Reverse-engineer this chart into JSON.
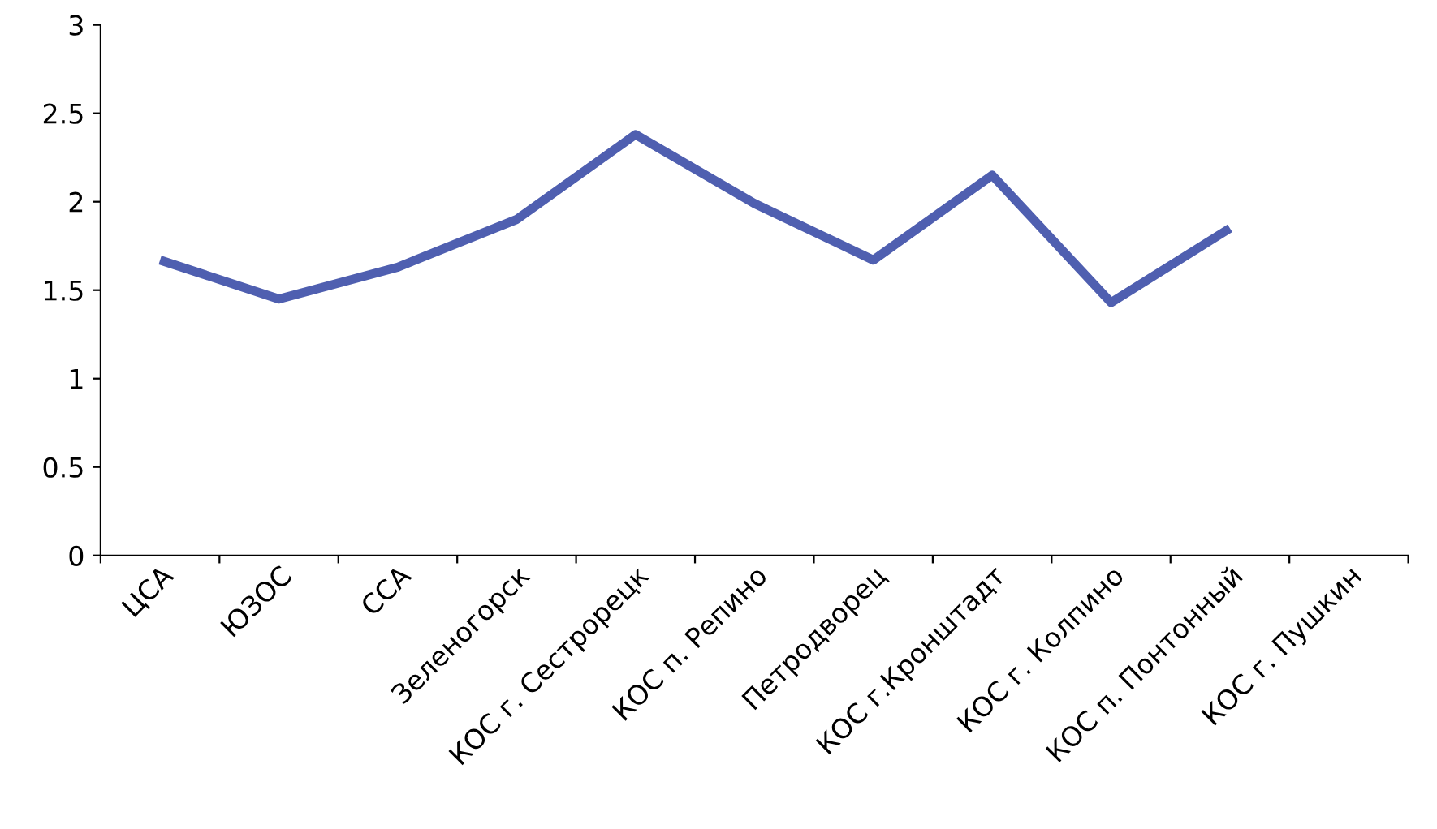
{
  "chart_data": {
    "type": "line",
    "categories": [
      "ЦСА",
      "ЮЗОС",
      "ССА",
      "Зеленогорск",
      "КОС г. Сестрорецк",
      "КОС п. Репино",
      "Петродворец",
      "КОС г.Кронштадт",
      "КОС г. Колпино",
      "КОС п. Понтонный",
      "КОС г. Пушкин"
    ],
    "series": [
      {
        "color": "#4f5fb0",
        "values": [
          1.67,
          1.45,
          1.63,
          1.9,
          2.38,
          1.99,
          1.67,
          2.15,
          1.43,
          1.85,
          null
        ]
      }
    ],
    "ylim": [
      0,
      3
    ],
    "yticks": [
      0,
      0.5,
      1,
      1.5,
      2,
      2.5,
      3
    ],
    "grid": false,
    "legend": false,
    "marker": "none",
    "line_style": "solid"
  }
}
